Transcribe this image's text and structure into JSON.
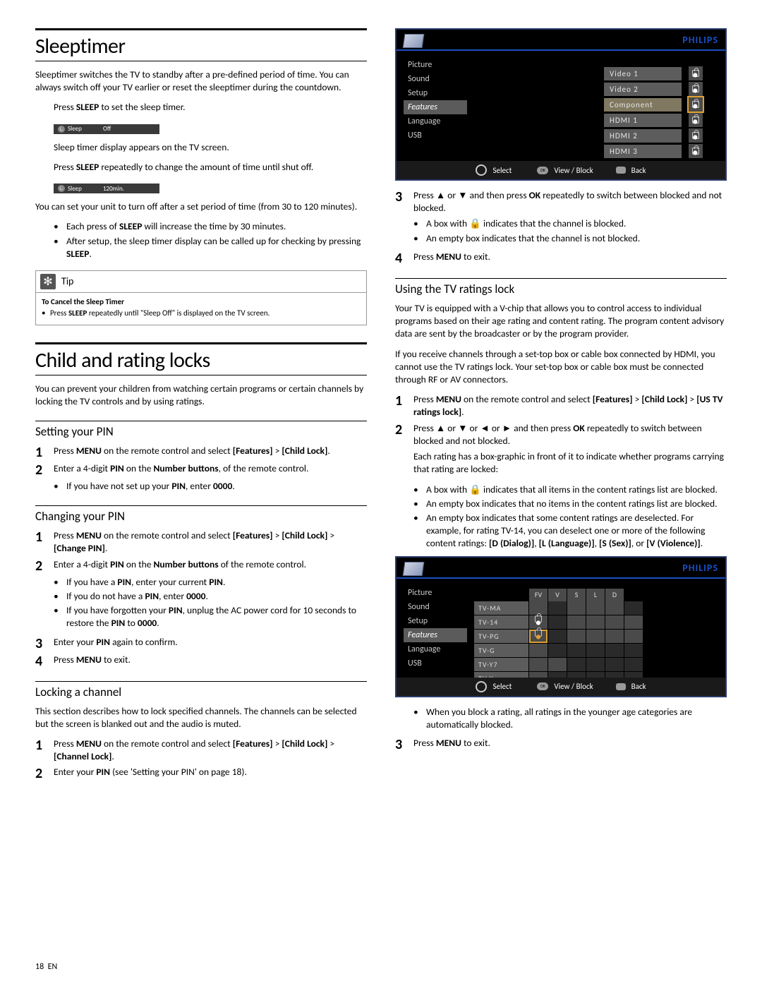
{
  "page_number": "18",
  "page_lang": "EN",
  "left": {
    "h1_sleep": "Sleeptimer",
    "sleep_intro": "Sleeptimer switches the TV to standby after a pre-defined period of time. You can always switch off your TV earlier or reset the sleeptimer during the countdown.",
    "sleep_press_pre": "Press ",
    "sleep_press_b": "SLEEP",
    "sleep_press_post": " to set the sleep timer.",
    "bar1_label": "Sleep",
    "bar1_value": "Off",
    "sleep_display": "Sleep timer display appears on the TV screen.",
    "sleep_repeat_pre": "Press ",
    "sleep_repeat_b": "SLEEP",
    "sleep_repeat_post": " repeatedly to change the amount of time until shut off.",
    "bar2_label": "Sleep",
    "bar2_value": "120min.",
    "sleep_range": "You can set your unit to turn off after a set period of time (from 30 to 120 minutes).",
    "sleep_b1_pre": "Each press of ",
    "sleep_b1_b": "SLEEP",
    "sleep_b1_post": " will increase the time by 30 minutes.",
    "sleep_b2_pre": "After setup, the sleep timer display can be called up for checking by pressing ",
    "sleep_b2_b": "SLEEP",
    "sleep_b2_post": ".",
    "tip_label": "Tip",
    "tip_title": "To Cancel the Sleep Timer",
    "tip_li_pre": "Press ",
    "tip_li_b": "SLEEP",
    "tip_li_post": " repeatedly until \"Sleep Off\" is displayed on the TV screen.",
    "h1_child": "Child and rating locks",
    "child_intro": "You can prevent your children from watching certain programs or certain channels by locking the TV controls and by using ratings.",
    "h2_setpin": "Setting your PIN",
    "setpin_1_pre": "Press ",
    "setpin_1_b1": "MENU",
    "setpin_1_mid": " on the remote control and select ",
    "setpin_1_b2": "[Features]",
    "setpin_1_mid2": " > ",
    "setpin_1_b3": "[Child Lock]",
    "setpin_1_post": ".",
    "setpin_2_pre": "Enter a 4-digit ",
    "setpin_2_b1": "PIN",
    "setpin_2_mid": " on the ",
    "setpin_2_b2": "Number buttons",
    "setpin_2_post": ", of the remote control.",
    "setpin_b1_pre": "If you have not set up your ",
    "setpin_b1_b": "PIN",
    "setpin_b1_mid": ", enter ",
    "setpin_b1_b2": "0000",
    "setpin_b1_post": ".",
    "h2_chgpin": "Changing your PIN",
    "chg_1_pre": "Press ",
    "chg_1_b1": "MENU",
    "chg_1_mid": " on the remote control and select ",
    "chg_1_b2": "[Features]",
    "chg_1_mid2": " > ",
    "chg_1_b3": "[Child Lock]",
    "chg_1_mid3": " > ",
    "chg_1_b4": "[Change PIN]",
    "chg_1_post": ".",
    "chg_2_pre": "Enter a 4-digit ",
    "chg_2_b1": "PIN",
    "chg_2_mid": " on the ",
    "chg_2_b2": "Number buttons",
    "chg_2_post": " of the remote control.",
    "chg_b1_pre": "If you have a ",
    "chg_b1_b": "PIN",
    "chg_b1_mid": ", enter your current ",
    "chg_b1_b2": "PIN",
    "chg_b1_post": ".",
    "chg_b2_pre": "If you do not have a ",
    "chg_b2_b": "PIN",
    "chg_b2_mid": ", enter ",
    "chg_b2_b2": "0000",
    "chg_b2_post": ".",
    "chg_b3_pre": "If you have forgotten your ",
    "chg_b3_b": "PIN",
    "chg_b3_mid": ", unplug the AC power cord for 10 seconds to restore the ",
    "chg_b3_b2": "PIN",
    "chg_b3_mid2": " to ",
    "chg_b3_b3": "0000",
    "chg_b3_post": ".",
    "chg_3_pre": "Enter your ",
    "chg_3_b": "PIN",
    "chg_3_post": " again to confirm.",
    "chg_4_pre": "Press ",
    "chg_4_b": "MENU",
    "chg_4_post": " to exit.",
    "h2_lockch": "Locking a channel",
    "lockch_intro": "This section describes how to lock specified channels. The channels can be selected but the screen is blanked out and the audio is muted.",
    "lk_1_pre": "Press ",
    "lk_1_b1": "MENU",
    "lk_1_mid": " on the remote control and select ",
    "lk_1_b2": "[Features]",
    "lk_1_mid2": " > ",
    "lk_1_b3": "[Child Lock]",
    "lk_1_mid3": " > ",
    "lk_1_b4": "[Channel Lock]",
    "lk_1_post": ".",
    "lk_2_pre": "Enter your ",
    "lk_2_b": "PIN",
    "lk_2_post": " (see 'Setting your PIN' on page 18)."
  },
  "right": {
    "tv1": {
      "brand": "PHILIPS",
      "sidebar": [
        "Picture",
        "Sound",
        "Setup",
        "Features",
        "Language",
        "USB"
      ],
      "sidebar_selected": 3,
      "channels": [
        {
          "name": "Video 1",
          "locked": true,
          "hl": false
        },
        {
          "name": "Video 2",
          "locked": true,
          "hl": false
        },
        {
          "name": "Component",
          "locked": true,
          "hl": true
        },
        {
          "name": "HDMI 1",
          "locked": true,
          "hl": false
        },
        {
          "name": "HDMI 2",
          "locked": true,
          "hl": false
        },
        {
          "name": "HDMI 3",
          "locked": true,
          "hl": false
        }
      ],
      "footer_select": "Select",
      "footer_view": "View / Block",
      "footer_back": "Back"
    },
    "s3_pre": "Press ▲ or ▼ and then press ",
    "s3_b": "OK",
    "s3_post": " repeatedly to switch between blocked and not blocked.",
    "s3_b1": "A box with 🔒 indicates that the channel is blocked.",
    "s3_b2": "An empty box indicates that the channel is not blocked.",
    "s4_pre": "Press ",
    "s4_b": "MENU",
    "s4_post": " to exit.",
    "h2_ratings": "Using the TV ratings lock",
    "ratings_intro": "Your TV is equipped with a V-chip that allows you to control access to individual programs based on their age rating and content rating. The program content advisory data are sent by the broadcaster or by the program provider.",
    "ratings_note": "If you receive channels through a set-top box or cable box connected by HDMI, you cannot use the TV ratings lock. Your set-top box or cable box must be connected through RF or AV connectors.",
    "r1_pre": "Press ",
    "r1_b1": "MENU",
    "r1_mid": " on the remote control and select ",
    "r1_b2": "[Features]",
    "r1_mid2": " > ",
    "r1_b3": "[Child Lock]",
    "r1_mid3": " > ",
    "r1_b4": "[US TV ratings lock]",
    "r1_post": ".",
    "r2_pre": "Press ▲ or ▼ or ◄ or ► and then press ",
    "r2_b": "OK",
    "r2_post": " repeatedly to switch between blocked and not blocked.",
    "r2_after": "Each rating has a box-graphic in front of it to indicate whether programs carrying that rating are locked:",
    "r2_b1": "A box with 🔒 indicates that all items in the content ratings list are blocked.",
    "r2_b2": "An empty box indicates that no items in the content ratings list are blocked.",
    "r2_b3_pre": "An empty box indicates that some content ratings are deselected. For example, for rating TV-14, you can deselect one or more of the following content ratings: ",
    "r2_b3_b1": "[D (Dialog)]",
    "r2_b3_m1": ", ",
    "r2_b3_b2": "[L (Language)]",
    "r2_b3_m2": ", ",
    "r2_b3_b3": "[S (Sex)]",
    "r2_b3_m3": ", or ",
    "r2_b3_b4": "[V (Violence)]",
    "r2_b3_post": ".",
    "tv2": {
      "brand": "PHILIPS",
      "sidebar": [
        "Picture",
        "Sound",
        "Setup",
        "Features",
        "Language",
        "USB"
      ],
      "sidebar_selected": 3,
      "headers": [
        "FV",
        "V",
        "S",
        "L",
        "D"
      ],
      "rows": [
        {
          "label": "TV-MA",
          "cells": [
            0,
            1,
            1,
            1,
            0
          ],
          "lock_col": -1
        },
        {
          "label": "TV-14",
          "cells": [
            0,
            1,
            1,
            1,
            1
          ],
          "lock_col": 0,
          "lock": true
        },
        {
          "label": "TV-PG",
          "cells": [
            0,
            1,
            1,
            1,
            1
          ],
          "lock_col": 0,
          "lock": true,
          "hl": true
        },
        {
          "label": "TV-G",
          "cells": [
            0,
            0,
            0,
            0,
            0
          ],
          "lock_col": -1
        },
        {
          "label": "TV-Y7",
          "cells": [
            1,
            0,
            0,
            0,
            0
          ],
          "lock_col": -1
        },
        {
          "label": "TV-Y",
          "cells": [
            0,
            0,
            0,
            0,
            0
          ],
          "lock_col": -1
        }
      ],
      "footer_select": "Select",
      "footer_view": "View / Block",
      "footer_back": "Back"
    },
    "after_b1": "When you block a rating, all ratings in the younger age categories are automatically blocked.",
    "r3_pre": "Press ",
    "r3_b": "MENU",
    "r3_post": " to exit."
  },
  "colors": {
    "philips_blue": "#1a4fc4",
    "tv_bg": "#000000",
    "menu_grey": "#5c5c5c",
    "highlight": "#e0a030"
  }
}
